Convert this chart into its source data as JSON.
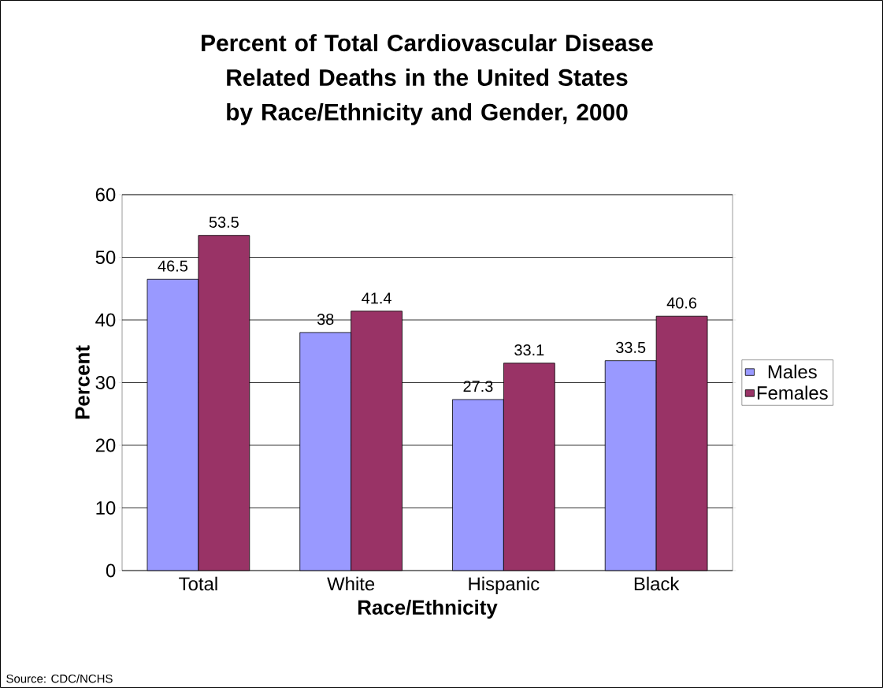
{
  "chart_data": {
    "type": "bar",
    "title": "Percent of Total Cardiovascular Disease Related Deaths in the United States by Race/Ethnicity and Gender, 2000",
    "xlabel": "Race/Ethnicity",
    "ylabel": "Percent",
    "categories": [
      "Total",
      "White",
      "Hispanic",
      "Black"
    ],
    "series": [
      {
        "name": "Males",
        "color": "#9999ff",
        "values": [
          46.5,
          38,
          27.3,
          33.5
        ]
      },
      {
        "name": "Females",
        "color": "#993366",
        "values": [
          53.5,
          41.4,
          33.1,
          40.6
        ]
      }
    ],
    "ylim": [
      0,
      60
    ],
    "yticks": [
      0,
      10,
      20,
      30,
      40,
      50,
      60
    ],
    "grid": "y",
    "legend": "right",
    "data_labels": true,
    "annotations": [
      "Source: CDC/NCHS"
    ]
  }
}
